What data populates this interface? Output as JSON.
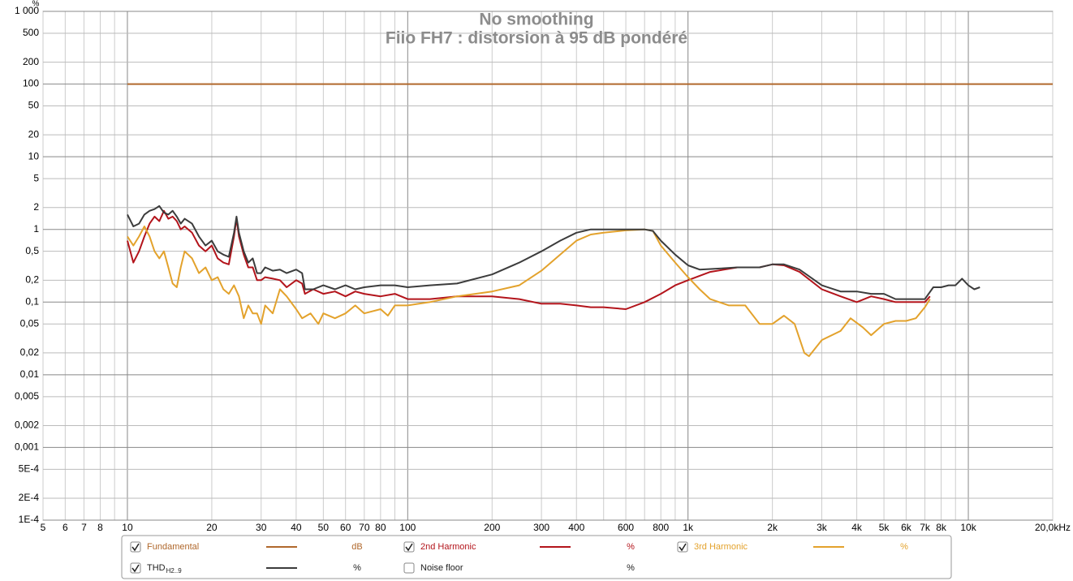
{
  "chart_data": {
    "type": "line",
    "title": "No smoothing",
    "subtitle": "Fiio FH7 : distorsion à 95 dB pondéré",
    "y_unit": "%",
    "x_log": true,
    "y_log": true,
    "grid": true,
    "xlim": [
      5,
      20000
    ],
    "ylim": [
      0.0001,
      1000
    ],
    "xticks": [
      5,
      6,
      7,
      8,
      10,
      20,
      30,
      40,
      50,
      60,
      70,
      80,
      100,
      200,
      300,
      400,
      600,
      800,
      {
        "value": 1000,
        "label": "1k"
      },
      {
        "value": 2000,
        "label": "2k"
      },
      {
        "value": 3000,
        "label": "3k"
      },
      {
        "value": 4000,
        "label": "4k"
      },
      {
        "value": 5000,
        "label": "5k"
      },
      {
        "value": 6000,
        "label": "6k"
      },
      {
        "value": 7000,
        "label": "7k"
      },
      {
        "value": 8000,
        "label": "8k"
      },
      {
        "value": 10000,
        "label": "10k"
      },
      {
        "value": 20000,
        "label": "20,0kHz"
      }
    ],
    "x_minor_ticks": [
      9,
      90,
      500,
      700,
      900,
      9000
    ],
    "yticks": [
      {
        "value": 1000,
        "label": "1 000"
      },
      500,
      200,
      100,
      50,
      20,
      10,
      5,
      2,
      1,
      {
        "value": 0.5,
        "label": "0,5"
      },
      {
        "value": 0.2,
        "label": "0,2"
      },
      {
        "value": 0.1,
        "label": "0,1"
      },
      {
        "value": 0.05,
        "label": "0,05"
      },
      {
        "value": 0.02,
        "label": "0,02"
      },
      {
        "value": 0.01,
        "label": "0,01"
      },
      {
        "value": 0.005,
        "label": "0,005"
      },
      {
        "value": 0.002,
        "label": "0,002"
      },
      {
        "value": 0.001,
        "label": "0,001"
      },
      {
        "value": 0.0005,
        "label": "5E-4"
      },
      {
        "value": 0.0002,
        "label": "2E-4"
      },
      {
        "value": 0.0001,
        "label": "1E-4"
      }
    ],
    "series": [
      {
        "name": "Fundamental",
        "unit": "dB",
        "checked": true,
        "color": "#b0682c",
        "x": [
          10,
          20000
        ],
        "values": [
          100,
          100
        ]
      },
      {
        "name": "2nd Harmonic",
        "unit": "%",
        "checked": true,
        "color": "#b3141b",
        "x": [
          10,
          10.5,
          11,
          11.5,
          12,
          12.5,
          13,
          13.5,
          14,
          14.5,
          15,
          15.5,
          16,
          17,
          18,
          19,
          20,
          21,
          22,
          23,
          24,
          24.5,
          25,
          26,
          27,
          28,
          29,
          30,
          31,
          33,
          35,
          37,
          40,
          42,
          43,
          46,
          50,
          55,
          60,
          65,
          70,
          80,
          90,
          100,
          120,
          150,
          200,
          250,
          300,
          350,
          400,
          450,
          500,
          600,
          700,
          800,
          900,
          1000,
          1200,
          1500,
          1800,
          2000,
          2200,
          2500,
          3000,
          3500,
          4000,
          4500,
          5000,
          5500,
          6000,
          6500,
          7000,
          7300
        ],
        "values": [
          0.7,
          0.35,
          0.5,
          0.8,
          1.2,
          1.5,
          1.3,
          1.8,
          1.4,
          1.5,
          1.3,
          1.0,
          1.1,
          0.9,
          0.6,
          0.5,
          0.6,
          0.4,
          0.35,
          0.33,
          0.8,
          1.4,
          0.8,
          0.45,
          0.3,
          0.3,
          0.2,
          0.2,
          0.22,
          0.21,
          0.2,
          0.16,
          0.2,
          0.18,
          0.13,
          0.15,
          0.13,
          0.14,
          0.12,
          0.14,
          0.13,
          0.12,
          0.13,
          0.11,
          0.11,
          0.12,
          0.12,
          0.11,
          0.095,
          0.095,
          0.09,
          0.085,
          0.085,
          0.08,
          0.1,
          0.13,
          0.17,
          0.2,
          0.26,
          0.3,
          0.3,
          0.33,
          0.32,
          0.26,
          0.15,
          0.12,
          0.1,
          0.12,
          0.11,
          0.1,
          0.1,
          0.1,
          0.1,
          0.12
        ]
      },
      {
        "name": "3rd Harmonic",
        "unit": "%",
        "checked": true,
        "color": "#e3a22c",
        "x": [
          10,
          10.5,
          11,
          11.5,
          12,
          12.5,
          13,
          13.5,
          14,
          14.5,
          15,
          15.5,
          16,
          17,
          18,
          19,
          20,
          21,
          22,
          23,
          24,
          25,
          26,
          27,
          28,
          29,
          30,
          31,
          33,
          35,
          37,
          40,
          42,
          45,
          48,
          50,
          55,
          60,
          65,
          70,
          80,
          85,
          90,
          100,
          120,
          150,
          200,
          250,
          300,
          350,
          400,
          450,
          500,
          600,
          700,
          750,
          800,
          900,
          1000,
          1100,
          1200,
          1400,
          1600,
          1800,
          2000,
          2200,
          2400,
          2600,
          2700,
          3000,
          3500,
          3800,
          4200,
          4500,
          5000,
          5500,
          6000,
          6500,
          7000,
          7300
        ],
        "values": [
          0.8,
          0.6,
          0.8,
          1.1,
          0.8,
          0.5,
          0.4,
          0.5,
          0.3,
          0.18,
          0.16,
          0.3,
          0.5,
          0.4,
          0.25,
          0.3,
          0.2,
          0.22,
          0.15,
          0.13,
          0.17,
          0.12,
          0.06,
          0.09,
          0.07,
          0.07,
          0.05,
          0.09,
          0.07,
          0.15,
          0.12,
          0.08,
          0.06,
          0.07,
          0.05,
          0.07,
          0.06,
          0.07,
          0.09,
          0.07,
          0.08,
          0.065,
          0.09,
          0.09,
          0.1,
          0.12,
          0.14,
          0.17,
          0.27,
          0.45,
          0.7,
          0.85,
          0.9,
          0.97,
          1.0,
          0.95,
          0.6,
          0.35,
          0.22,
          0.15,
          0.11,
          0.09,
          0.09,
          0.05,
          0.05,
          0.065,
          0.05,
          0.02,
          0.018,
          0.03,
          0.04,
          0.06,
          0.045,
          0.035,
          0.05,
          0.055,
          0.055,
          0.06,
          0.085,
          0.11
        ]
      },
      {
        "name": "THD",
        "name_sub": "H2..9",
        "unit": "%",
        "checked": true,
        "color": "#3c3c3c",
        "x": [
          10,
          10.5,
          11,
          11.5,
          12,
          12.5,
          13,
          13.5,
          14,
          14.5,
          15,
          15.5,
          16,
          17,
          18,
          19,
          20,
          21,
          22,
          23,
          24,
          24.5,
          25,
          26,
          27,
          28,
          29,
          30,
          31,
          33,
          35,
          37,
          40,
          42,
          43,
          46,
          50,
          55,
          60,
          65,
          70,
          80,
          90,
          100,
          120,
          150,
          200,
          250,
          300,
          350,
          400,
          450,
          500,
          600,
          700,
          750,
          800,
          900,
          1000,
          1100,
          1300,
          1500,
          1800,
          2000,
          2200,
          2500,
          3000,
          3500,
          4000,
          4500,
          5000,
          5500,
          6000,
          6500,
          7000,
          7500,
          8000,
          8500,
          9000,
          9500,
          10000,
          10500,
          11000
        ],
        "values": [
          1.6,
          1.1,
          1.2,
          1.6,
          1.8,
          1.9,
          2.1,
          1.7,
          1.6,
          1.8,
          1.5,
          1.2,
          1.4,
          1.2,
          0.8,
          0.6,
          0.7,
          0.5,
          0.45,
          0.42,
          0.9,
          1.5,
          0.9,
          0.5,
          0.35,
          0.4,
          0.25,
          0.25,
          0.3,
          0.27,
          0.28,
          0.25,
          0.28,
          0.25,
          0.15,
          0.15,
          0.17,
          0.15,
          0.17,
          0.15,
          0.16,
          0.17,
          0.17,
          0.16,
          0.17,
          0.18,
          0.24,
          0.35,
          0.5,
          0.7,
          0.9,
          1.0,
          1.0,
          1.0,
          1.0,
          0.95,
          0.7,
          0.45,
          0.32,
          0.28,
          0.29,
          0.3,
          0.3,
          0.33,
          0.33,
          0.28,
          0.17,
          0.14,
          0.14,
          0.13,
          0.13,
          0.11,
          0.11,
          0.11,
          0.11,
          0.16,
          0.16,
          0.17,
          0.17,
          0.21,
          0.17,
          0.15,
          0.16
        ]
      },
      {
        "name": "Noise floor",
        "unit": "%",
        "checked": false,
        "x": [],
        "values": []
      }
    ]
  }
}
